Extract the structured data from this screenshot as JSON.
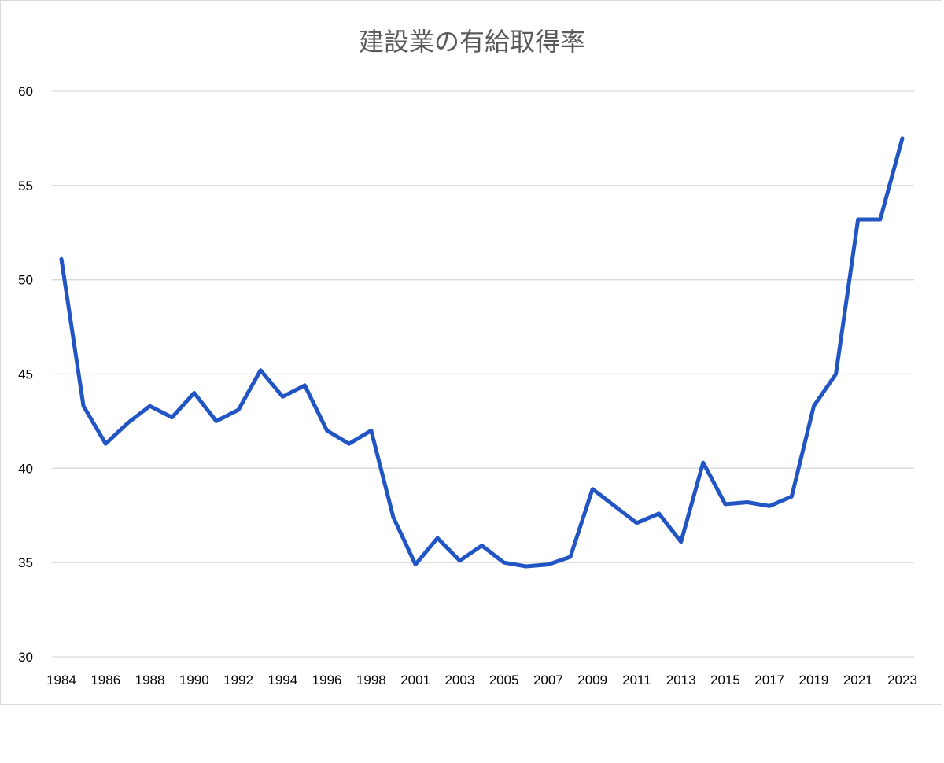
{
  "chart_data": {
    "type": "line",
    "title": "建設業の有給取得率",
    "xlabel": "",
    "ylabel": "",
    "ylim": [
      30,
      60
    ],
    "yticks": [
      30,
      35,
      40,
      45,
      50,
      55,
      60
    ],
    "grid": true,
    "legend": "none",
    "line_color": "#2255c4",
    "x": [
      1984,
      1985,
      1986,
      1987,
      1988,
      1989,
      1990,
      1991,
      1992,
      1993,
      1994,
      1995,
      1996,
      1997,
      1998,
      1999,
      2001,
      2002,
      2003,
      2004,
      2005,
      2006,
      2007,
      2008,
      2009,
      2010,
      2011,
      2012,
      2013,
      2014,
      2015,
      2016,
      2017,
      2018,
      2019,
      2020,
      2021,
      2022,
      2023
    ],
    "x_tick_labels": [
      "1984",
      "1986",
      "1988",
      "1990",
      "1992",
      "1994",
      "1996",
      "1998",
      "2001",
      "2003",
      "2005",
      "2007",
      "2009",
      "2011",
      "2013",
      "2015",
      "2017",
      "2019",
      "2021",
      "2023"
    ],
    "series": [
      {
        "values": [
          51.1,
          43.3,
          41.3,
          42.4,
          43.3,
          42.7,
          44.0,
          42.5,
          43.1,
          45.2,
          43.8,
          44.4,
          42.0,
          41.3,
          42.0,
          37.4,
          34.9,
          36.3,
          35.1,
          35.9,
          35.0,
          34.8,
          34.9,
          35.3,
          38.9,
          38.0,
          37.1,
          37.6,
          36.1,
          40.3,
          38.1,
          38.2,
          38.0,
          38.5,
          43.3,
          45.0,
          53.2,
          53.2,
          57.5
        ]
      }
    ]
  }
}
